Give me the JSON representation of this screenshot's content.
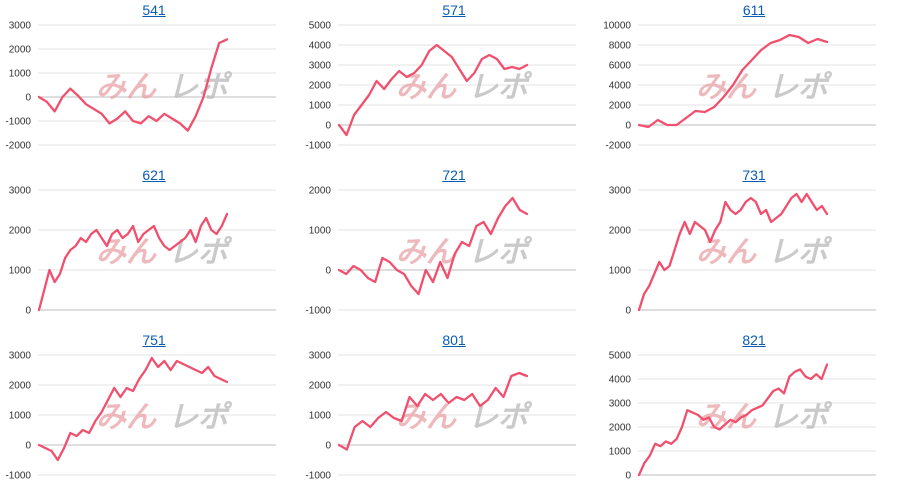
{
  "colors": {
    "line": "#f0506e",
    "title_link": "#0b5db3",
    "grid": "#e3e3e3",
    "zero_line": "#bdbdbd",
    "watermark_pink": "#e9a2a6",
    "watermark_gray": "#b9b9b9"
  },
  "watermark": {
    "text": "みんレポ"
  },
  "chart_data": [
    {
      "type": "line",
      "title": "541",
      "yticks": [
        -2000,
        -1000,
        0,
        1000,
        2000,
        3000
      ],
      "ylim": [
        -2000,
        3000
      ],
      "series": [
        {
          "values": [
            0,
            -200,
            -600,
            0,
            350,
            50,
            -300,
            -500,
            -700,
            -1100,
            -900,
            -600,
            -1000,
            -1100,
            -800,
            -1000,
            -700,
            -900,
            -1100,
            -1400,
            -800,
            0,
            1200,
            2250,
            2400
          ]
        }
      ]
    },
    {
      "type": "line",
      "title": "571",
      "yticks": [
        -1000,
        0,
        1000,
        2000,
        3000,
        4000,
        5000
      ],
      "ylim": [
        -1000,
        5000
      ],
      "series": [
        {
          "values": [
            0,
            -500,
            500,
            1000,
            1500,
            2200,
            1800,
            2300,
            2700,
            2400,
            2600,
            3000,
            3700,
            4000,
            3700,
            3400,
            2800,
            2200,
            2600,
            3300,
            3500,
            3300,
            2800,
            2900,
            2800,
            3000
          ]
        }
      ]
    },
    {
      "type": "line",
      "title": "611",
      "yticks": [
        -2000,
        0,
        2000,
        4000,
        6000,
        8000,
        10000
      ],
      "ylim": [
        -2000,
        10000
      ],
      "series": [
        {
          "values": [
            0,
            -200,
            500,
            0,
            0,
            700,
            1400,
            1300,
            1800,
            2800,
            4000,
            5500,
            6500,
            7500,
            8200,
            8500,
            9000,
            8800,
            8200,
            8600,
            8300
          ]
        }
      ]
    },
    {
      "type": "line",
      "title": "621",
      "yticks": [
        0,
        1000,
        2000,
        3000
      ],
      "ylim": [
        0,
        3000
      ],
      "series": [
        {
          "values": [
            0,
            500,
            1000,
            700,
            900,
            1300,
            1500,
            1600,
            1800,
            1700,
            1900,
            2000,
            1800,
            1600,
            1900,
            2000,
            1800,
            1900,
            2100,
            1700,
            1900,
            2000,
            2100,
            1800,
            1600,
            1500,
            1600,
            1700,
            1800,
            2000,
            1700,
            2100,
            2300,
            2000,
            1900,
            2100,
            2400
          ]
        }
      ]
    },
    {
      "type": "line",
      "title": "721",
      "yticks": [
        -1000,
        0,
        1000,
        2000
      ],
      "ylim": [
        -1000,
        2000
      ],
      "series": [
        {
          "values": [
            0,
            -100,
            100,
            0,
            -200,
            -300,
            300,
            200,
            0,
            -100,
            -400,
            -600,
            0,
            -300,
            200,
            -200,
            400,
            700,
            600,
            1100,
            1200,
            900,
            1300,
            1600,
            1800,
            1500,
            1400
          ]
        }
      ]
    },
    {
      "type": "line",
      "title": "731",
      "yticks": [
        0,
        1000,
        2000,
        3000
      ],
      "ylim": [
        0,
        3000
      ],
      "series": [
        {
          "values": [
            0,
            400,
            600,
            900,
            1200,
            1000,
            1100,
            1500,
            1900,
            2200,
            1900,
            2200,
            2100,
            2000,
            1700,
            2000,
            2200,
            2700,
            2500,
            2400,
            2500,
            2700,
            2800,
            2700,
            2400,
            2500,
            2200,
            2300,
            2400,
            2600,
            2800,
            2900,
            2700,
            2900,
            2700,
            2500,
            2600,
            2400
          ]
        }
      ]
    },
    {
      "type": "line",
      "title": "751",
      "yticks": [
        -1000,
        0,
        1000,
        2000,
        3000
      ],
      "ylim": [
        -1000,
        3000
      ],
      "series": [
        {
          "values": [
            0,
            -100,
            -200,
            -500,
            -100,
            400,
            300,
            500,
            400,
            800,
            1100,
            1500,
            1900,
            1600,
            1900,
            1800,
            2200,
            2500,
            2900,
            2600,
            2800,
            2500,
            2800,
            2700,
            2600,
            2500,
            2400,
            2600,
            2300,
            2200,
            2100
          ]
        }
      ]
    },
    {
      "type": "line",
      "title": "801",
      "yticks": [
        -1000,
        0,
        1000,
        2000,
        3000
      ],
      "ylim": [
        -1000,
        3000
      ],
      "series": [
        {
          "values": [
            0,
            -150,
            600,
            800,
            600,
            900,
            1100,
            900,
            800,
            1600,
            1300,
            1700,
            1500,
            1700,
            1400,
            1600,
            1500,
            1700,
            1300,
            1500,
            1900,
            1600,
            2300,
            2400,
            2300
          ]
        }
      ]
    },
    {
      "type": "line",
      "title": "821",
      "yticks": [
        0,
        1000,
        2000,
        3000,
        4000,
        5000
      ],
      "ylim": [
        0,
        5000
      ],
      "series": [
        {
          "values": [
            0,
            500,
            800,
            1300,
            1200,
            1400,
            1300,
            1500,
            2000,
            2700,
            2600,
            2500,
            2300,
            2400,
            2000,
            1900,
            2100,
            2300,
            2200,
            2400,
            2500,
            2700,
            2800,
            2900,
            3200,
            3500,
            3600,
            3400,
            4100,
            4300,
            4400,
            4100,
            4000,
            4200,
            4000,
            4600
          ]
        }
      ]
    }
  ]
}
